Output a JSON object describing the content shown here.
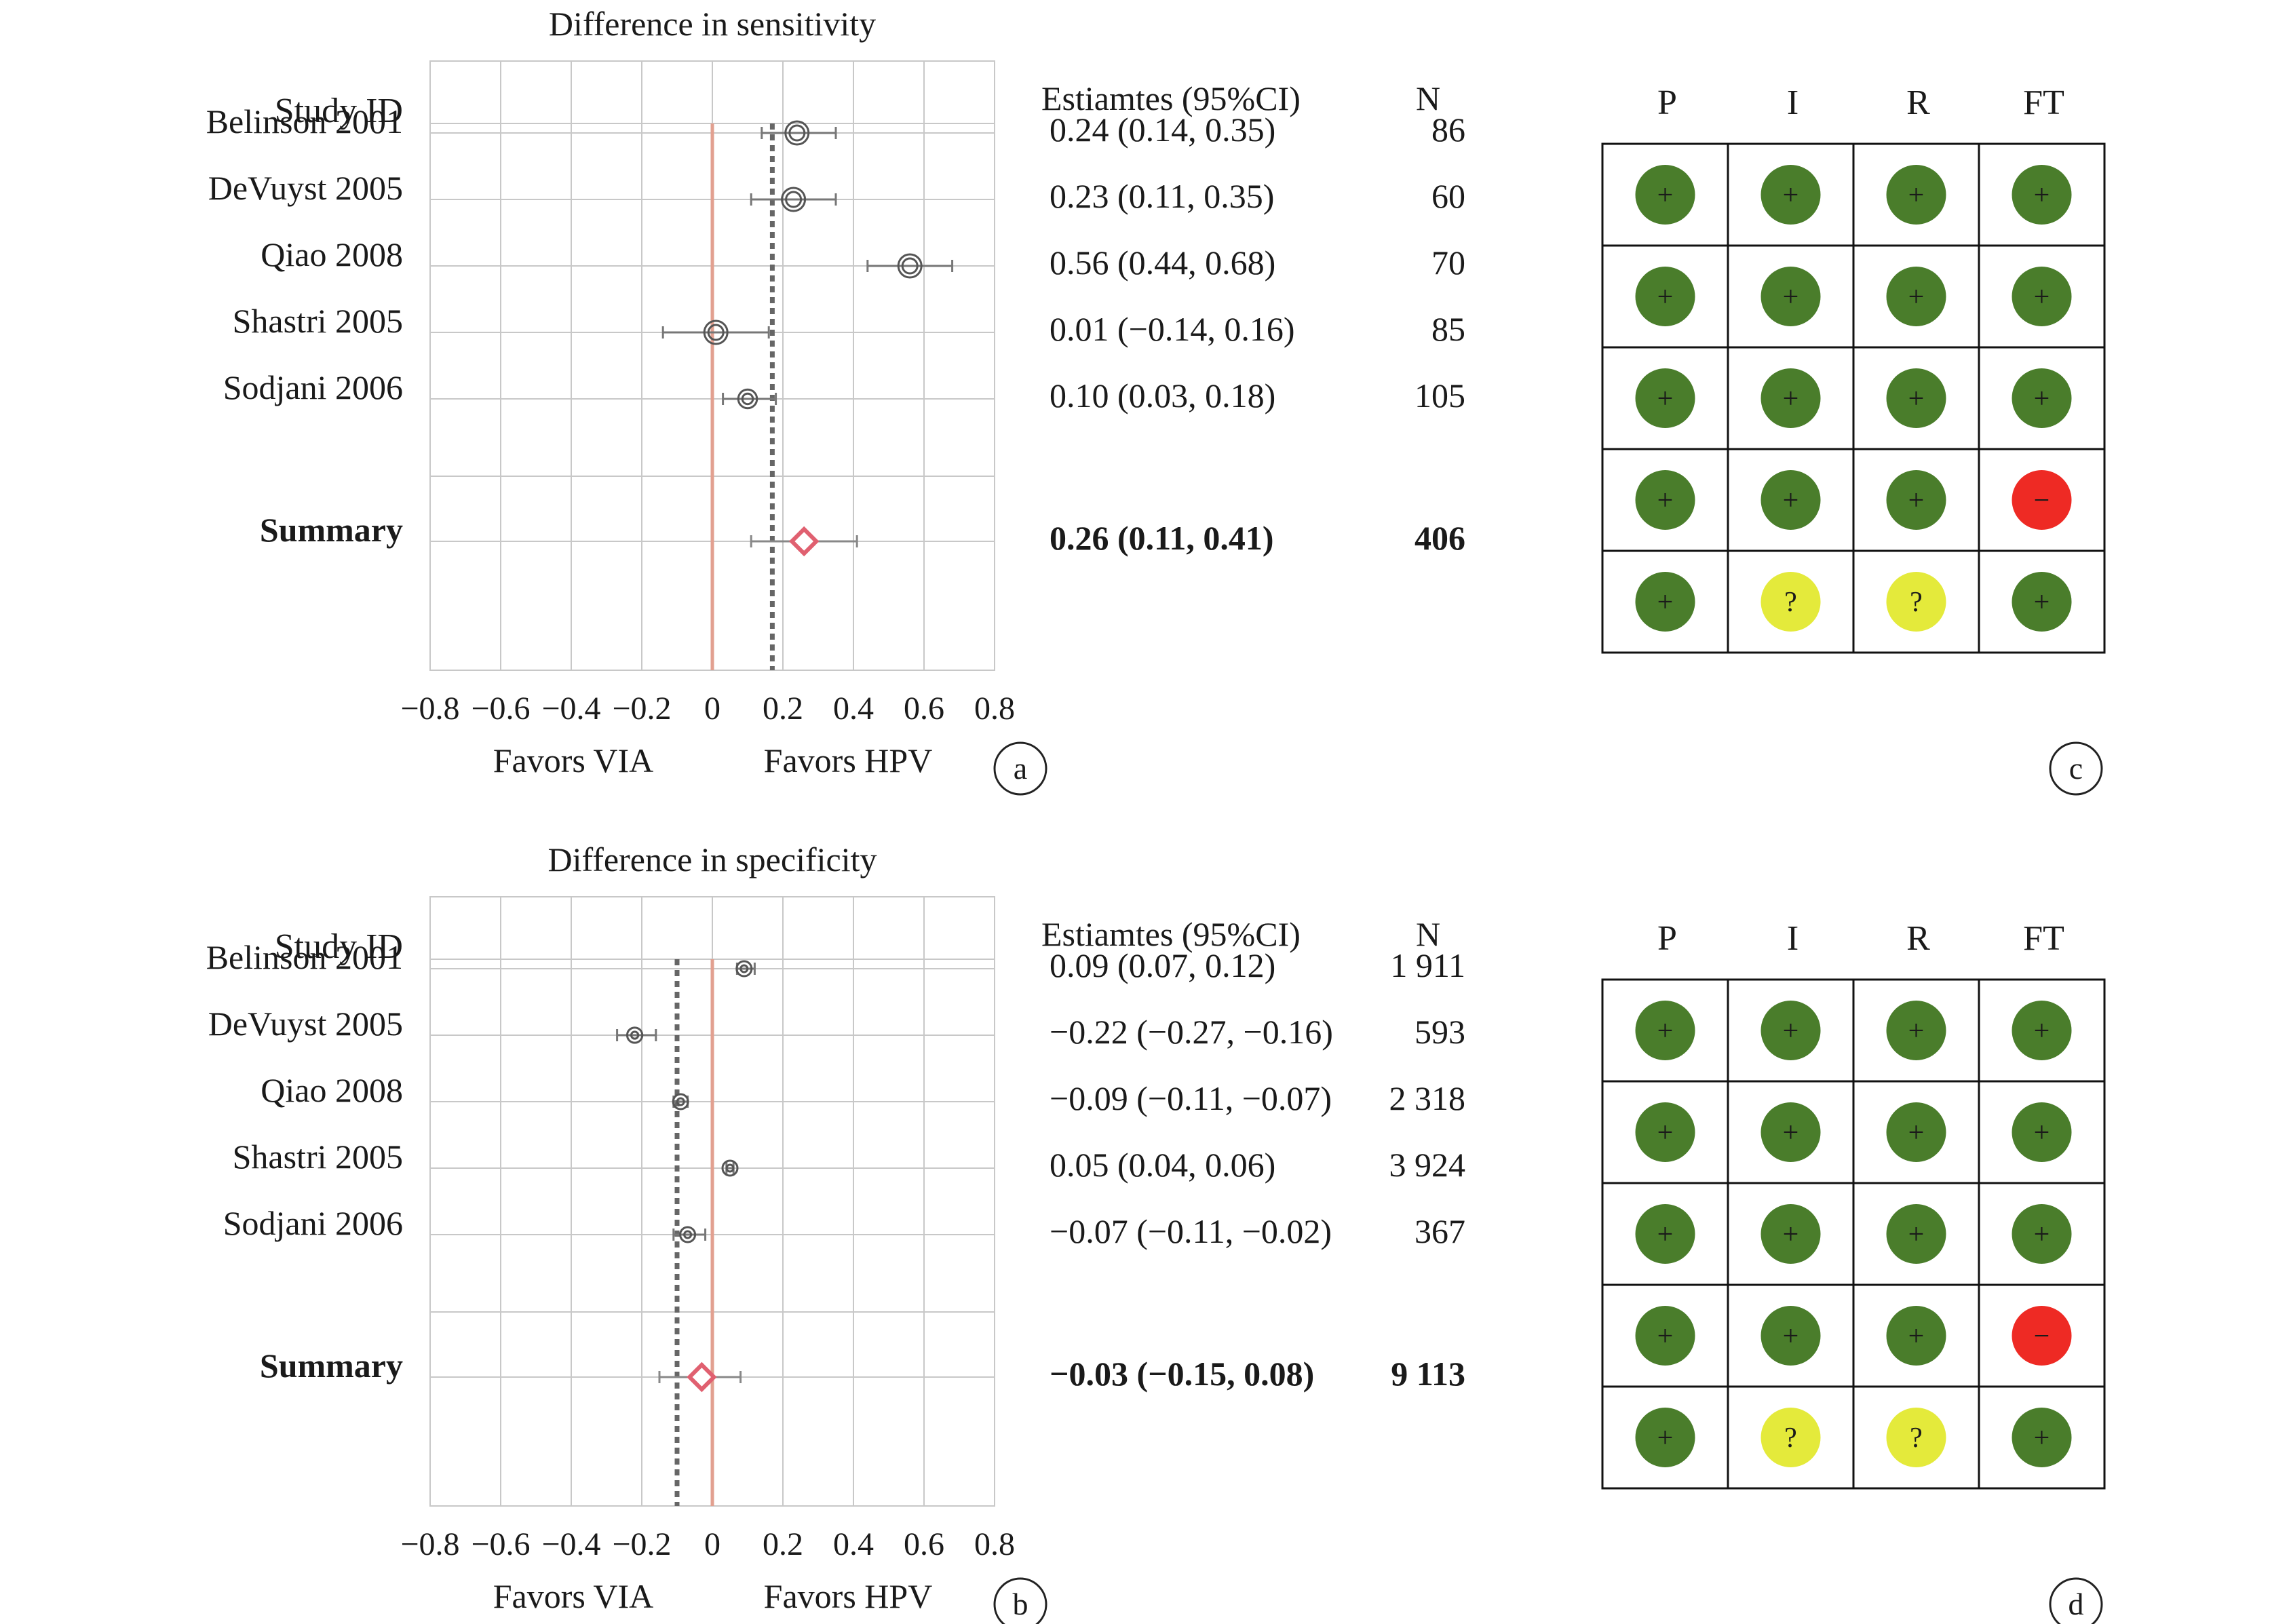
{
  "chart_data": [
    {
      "type": "forest",
      "panel_label": "a",
      "title": "Difference in sensitivity",
      "row_header": "Study ID",
      "estimates_header": "Estiamtes (95%CI)",
      "n_header": "N",
      "xlim": [
        -0.8,
        0.8
      ],
      "x_ticks": [
        "−0.8",
        "−0.6",
        "−0.4",
        "−0.2",
        "0",
        "0.2",
        "0.4",
        "0.6",
        "0.8"
      ],
      "favors_left": "Favors VIA",
      "favors_right": "Favors HPV",
      "null_line": 0,
      "pooled_line": 0.17,
      "studies": [
        {
          "name": "Belinson 2001",
          "est": 0.24,
          "lo": 0.14,
          "hi": 0.35,
          "label": "0.24 (0.14, 0.35)",
          "n": "86"
        },
        {
          "name": "DeVuyst 2005",
          "est": 0.23,
          "lo": 0.11,
          "hi": 0.35,
          "label": "0.23 (0.11, 0.35)",
          "n": "60"
        },
        {
          "name": "Qiao 2008",
          "est": 0.56,
          "lo": 0.44,
          "hi": 0.68,
          "label": "0.56 (0.44, 0.68)",
          "n": "70"
        },
        {
          "name": "Shastri 2005",
          "est": 0.01,
          "lo": -0.14,
          "hi": 0.16,
          "label": "0.01 (−0.14, 0.16)",
          "n": "85"
        },
        {
          "name": "Sodjani 2006",
          "est": 0.1,
          "lo": 0.03,
          "hi": 0.18,
          "label": "0.10 (0.03, 0.18)",
          "n": "105"
        }
      ],
      "summary": {
        "name": "Summary",
        "est": 0.26,
        "lo": 0.11,
        "hi": 0.41,
        "label": "0.26 (0.11, 0.41)",
        "n": "406"
      }
    },
    {
      "type": "forest",
      "panel_label": "b",
      "title": "Difference in specificity",
      "row_header": "Study ID",
      "estimates_header": "Estiamtes (95%CI)",
      "n_header": "N",
      "xlim": [
        -0.8,
        0.8
      ],
      "x_ticks": [
        "−0.8",
        "−0.6",
        "−0.4",
        "−0.2",
        "0",
        "0.2",
        "0.4",
        "0.6",
        "0.8"
      ],
      "favors_left": "Favors VIA",
      "favors_right": "Favors HPV",
      "null_line": 0,
      "pooled_line": -0.1,
      "studies": [
        {
          "name": "Belinson 2001",
          "est": 0.09,
          "lo": 0.07,
          "hi": 0.12,
          "label": "0.09 (0.07, 0.12)",
          "n": "1 911"
        },
        {
          "name": "DeVuyst 2005",
          "est": -0.22,
          "lo": -0.27,
          "hi": -0.16,
          "label": "−0.22 (−0.27, −0.16)",
          "n": "593"
        },
        {
          "name": "Qiao 2008",
          "est": -0.09,
          "lo": -0.11,
          "hi": -0.07,
          "label": "−0.09 (−0.11, −0.07)",
          "n": "2 318"
        },
        {
          "name": "Shastri 2005",
          "est": 0.05,
          "lo": 0.04,
          "hi": 0.06,
          "label": "0.05 (0.04, 0.06)",
          "n": "3 924"
        },
        {
          "name": "Sodjani 2006",
          "est": -0.07,
          "lo": -0.11,
          "hi": -0.02,
          "label": "−0.07 (−0.11, −0.02)",
          "n": "367"
        }
      ],
      "summary": {
        "name": "Summary",
        "est": -0.03,
        "lo": -0.15,
        "hi": 0.08,
        "label": "−0.03 (−0.15, 0.08)",
        "n": "9 113"
      }
    },
    {
      "type": "table",
      "panel_label": "c",
      "columns": [
        "P",
        "I",
        "R",
        "FT"
      ],
      "rows": [
        [
          "+",
          "+",
          "+",
          "+"
        ],
        [
          "+",
          "+",
          "+",
          "+"
        ],
        [
          "+",
          "+",
          "+",
          "+"
        ],
        [
          "+",
          "+",
          "+",
          "−"
        ],
        [
          "+",
          "?",
          "?",
          "+"
        ]
      ]
    },
    {
      "type": "table",
      "panel_label": "d",
      "columns": [
        "P",
        "I",
        "R",
        "FT"
      ],
      "rows": [
        [
          "+",
          "+",
          "+",
          "+"
        ],
        [
          "+",
          "+",
          "+",
          "+"
        ],
        [
          "+",
          "+",
          "+",
          "+"
        ],
        [
          "+",
          "+",
          "+",
          "−"
        ],
        [
          "+",
          "?",
          "?",
          "+"
        ]
      ]
    }
  ],
  "colors": {
    "low_risk": "#4a7d2b",
    "high_risk": "#ee2a24",
    "unclear": "#e4ea3b",
    "null_line": "#e2a090",
    "pooled_line": "#666666",
    "summary_diamond": "#e06070",
    "grid": "#c8c8c8",
    "marker": "#555555"
  }
}
